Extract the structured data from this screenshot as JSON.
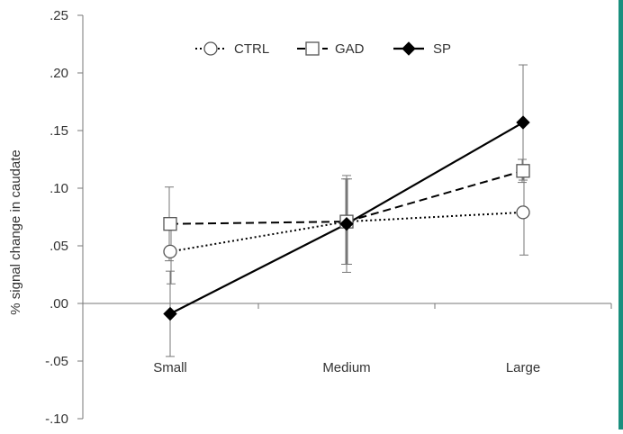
{
  "colors": {
    "axis": "#777777",
    "text": "#333333",
    "series": "#000000",
    "edge_strip": "#1a8f7e"
  },
  "chart_data": {
    "type": "line",
    "title": "",
    "xlabel": "",
    "ylabel": "% signal change in caudate",
    "categories": [
      "Small",
      "Medium",
      "Large"
    ],
    "ylim": [
      -0.1,
      0.25
    ],
    "yticks": [
      0.25,
      0.2,
      0.15,
      0.1,
      0.05,
      0.0,
      -0.05,
      -0.1
    ],
    "ytick_labels": [
      ".25",
      ".20",
      ".15",
      ".10",
      ".05",
      ".00",
      "-.05",
      "-.10"
    ],
    "grid": false,
    "legend_position": "top",
    "series": [
      {
        "name": "CTRL",
        "line_style": "dotted",
        "marker": "open-circle",
        "values": [
          0.045,
          0.071,
          0.079
        ],
        "errors": [
          0.028,
          0.037,
          0.037
        ]
      },
      {
        "name": "GAD",
        "line_style": "dashed",
        "marker": "open-square",
        "values": [
          0.069,
          0.071,
          0.115
        ],
        "errors": [
          0.032,
          0.037,
          0.01
        ]
      },
      {
        "name": "SP",
        "line_style": "solid",
        "marker": "filled-diamond",
        "values": [
          -0.009,
          0.069,
          0.157
        ],
        "errors": [
          0.037,
          0.042,
          0.05
        ]
      }
    ]
  }
}
